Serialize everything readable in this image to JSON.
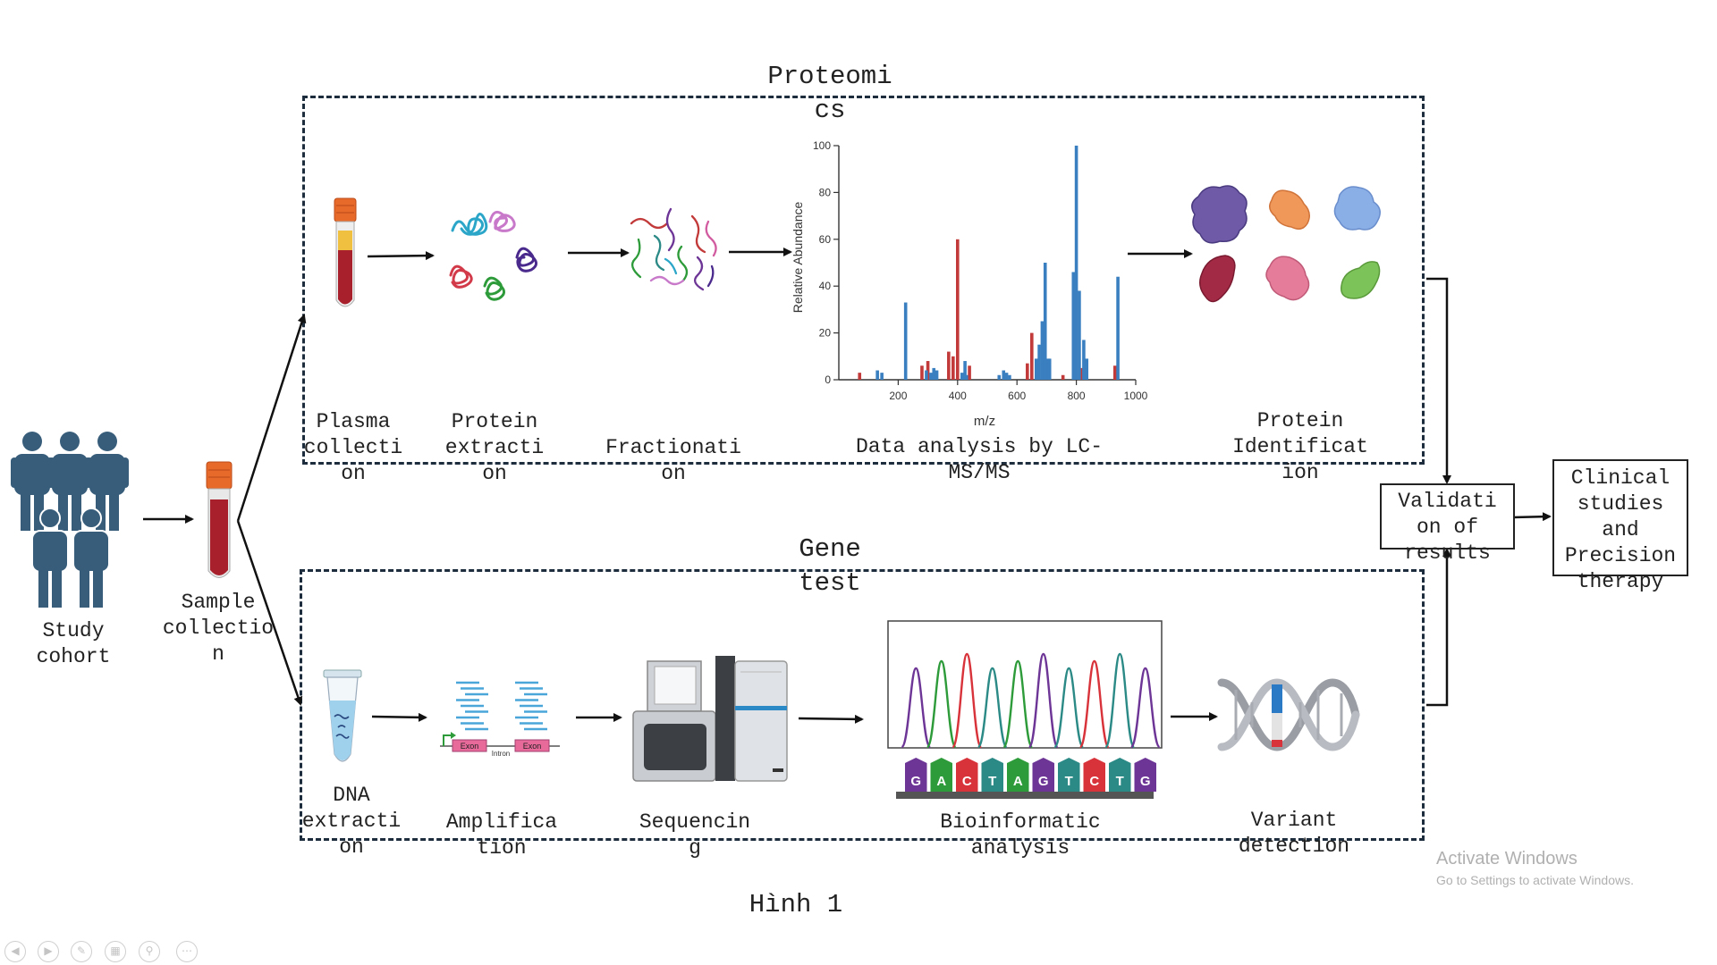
{
  "sections": {
    "proteomics_title": "Proteomi\ncs",
    "gene_test_title": "Gene\ntest"
  },
  "left": {
    "study_cohort": "Study\ncohort",
    "sample_collection": "Sample\ncollectio\nn"
  },
  "proteomics_steps": {
    "plasma": "Plasma\ncollecti\non",
    "protein_extraction": "Protein\nextracti\non",
    "fractionation": "Fractionati\non",
    "lcms": "Data analysis by LC-\nMS/MS",
    "protein_identification": "Protein\nIdentificat\nion"
  },
  "gene_steps": {
    "dna": "DNA\nextracti\non",
    "amplification": "Amplifica\ntion",
    "sequencing": "Sequencin\ng",
    "bioinformatic": "Bioinformatic\nanalysis",
    "variant": "Variant\ndetection"
  },
  "right": {
    "validation": "Validati\non of\nresults",
    "clinical": "Clinical\nstudies\nand\nPrecision\ntherapy"
  },
  "caption": "Hình 1",
  "watermark": {
    "title": "Activate Windows",
    "subtitle": "Go to Settings to activate Windows."
  },
  "amplification_labels": {
    "exon1": "Exon",
    "intron": "Intron",
    "exon2": "Exon"
  },
  "dna_bases": [
    "G",
    "A",
    "C",
    "T",
    "A",
    "G",
    "T",
    "C",
    "T",
    "G"
  ],
  "base_colors": {
    "A": "#2e9b3a",
    "C": "#d8333b",
    "G": "#6d3596",
    "T": "#2b8a86"
  },
  "chart_data": {
    "type": "bar",
    "xlabel": "m/z",
    "ylabel": "Relative Abundance",
    "xlim": [
      0,
      1000
    ],
    "ylim": [
      0,
      100
    ],
    "xticks": [
      200,
      400,
      600,
      800,
      1000
    ],
    "yticks": [
      0,
      20,
      40,
      60,
      80,
      100
    ],
    "series": [
      {
        "color": "#c23a3a",
        "x": [
          70,
          280,
          300,
          370,
          385,
          400,
          440,
          635,
          650,
          755,
          820,
          930
        ],
        "values": [
          3,
          6,
          8,
          12,
          10,
          60,
          6,
          7,
          20,
          2,
          5,
          6
        ]
      },
      {
        "color": "#3a7fc0",
        "x": [
          130,
          145,
          225,
          295,
          310,
          320,
          330,
          415,
          425,
          430,
          540,
          555,
          565,
          575,
          665,
          675,
          685,
          695,
          705,
          710,
          790,
          800,
          810,
          825,
          835,
          940
        ],
        "values": [
          4,
          3,
          33,
          4,
          3,
          5,
          4,
          3,
          8,
          2,
          2,
          4,
          3,
          2,
          9,
          15,
          25,
          50,
          9,
          9,
          46,
          100,
          38,
          17,
          9,
          44
        ]
      }
    ]
  }
}
